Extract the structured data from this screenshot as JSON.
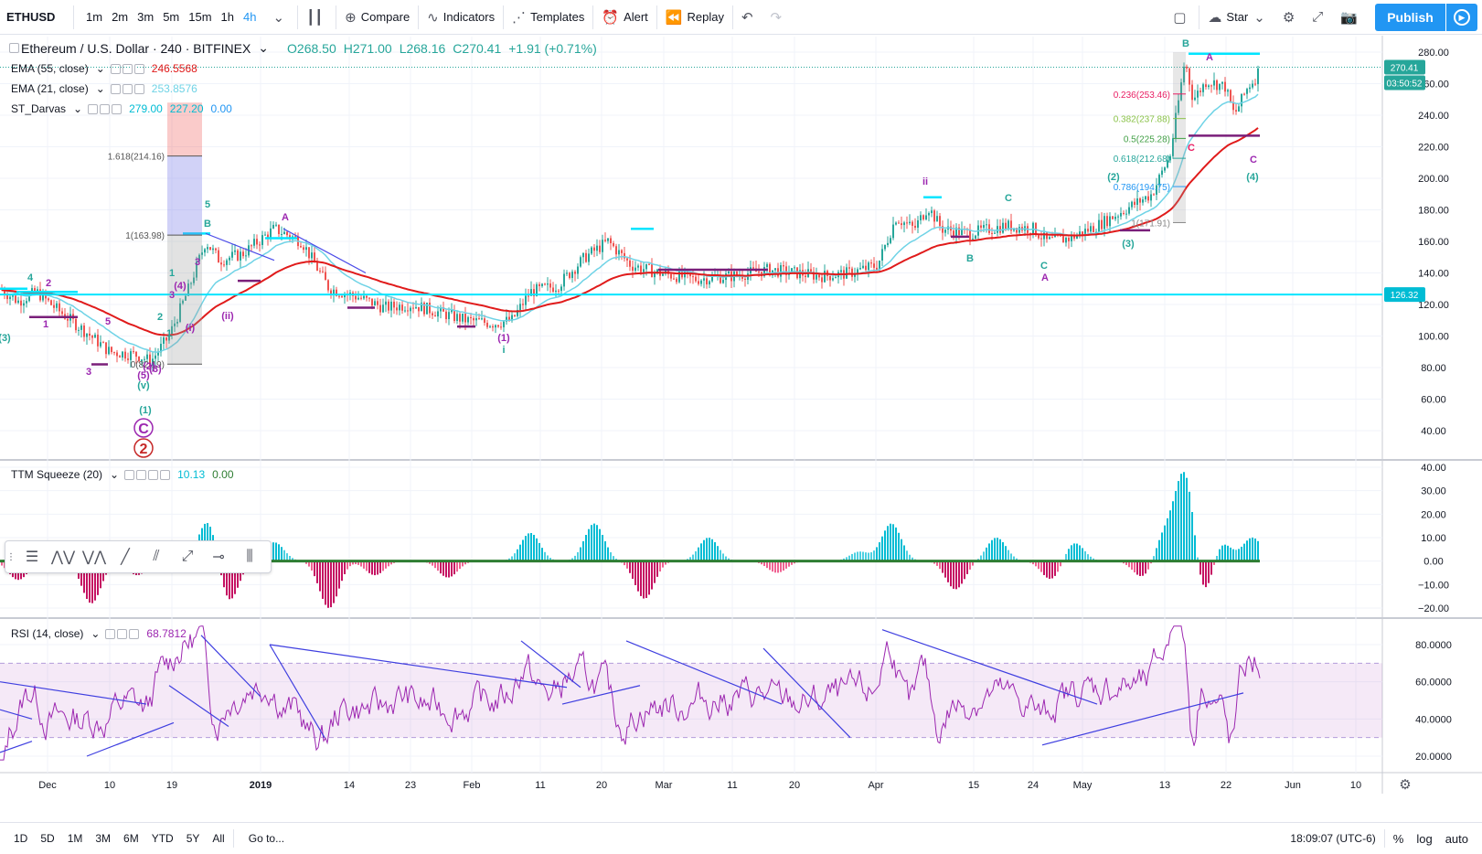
{
  "toolbar": {
    "symbol": "ETHUSD",
    "timeframes": [
      "1m",
      "2m",
      "3m",
      "5m",
      "15m",
      "1h",
      "4h"
    ],
    "active_tf": "4h",
    "compare": "Compare",
    "indicators": "Indicators",
    "templates": "Templates",
    "alert": "Alert",
    "replay": "Replay",
    "star": "Star",
    "publish": "Publish"
  },
  "legend": {
    "main": {
      "title": "Ethereum / U.S. Dollar · 240 · BITFINEX",
      "open": "O268.50",
      "high": "H271.00",
      "low": "L268.16",
      "close": "C270.41",
      "change": "+1.91 (+0.71%)"
    },
    "ema55": {
      "name": "EMA (55, close)",
      "value": "246.5568"
    },
    "ema21": {
      "name": "EMA (21, close)",
      "value": "253.8576"
    },
    "darvas": {
      "name": "ST_Darvas",
      "v1": "279.00",
      "v2": "227.20",
      "v3": "0.00"
    },
    "ttm": {
      "name": "TTM Squeeze (20)",
      "v1": "10.13",
      "v2": "0.00"
    },
    "rsi": {
      "name": "RSI (14, close)",
      "value": "68.7812"
    }
  },
  "axes": {
    "price_ticks": [
      "280.00",
      "260.00",
      "240.00",
      "220.00",
      "200.00",
      "180.00",
      "160.00",
      "140.00",
      "120.00",
      "100.00",
      "80.00",
      "60.00",
      "40.00"
    ],
    "price_last": "270.41",
    "price_countdown": "03:50:52",
    "price_hline": "126.32",
    "ttm_ticks": [
      "40.00",
      "30.00",
      "20.00",
      "10.00",
      "0.00",
      "−10.00",
      "−20.00"
    ],
    "rsi_ticks": [
      "80.0000",
      "60.0000",
      "40.0000",
      "20.0000"
    ],
    "time_ticks": [
      "Dec",
      "10",
      "19",
      "2019",
      "14",
      "23",
      "Feb",
      "11",
      "20",
      "Mar",
      "11",
      "20",
      "Apr",
      "15",
      "24",
      "May",
      "13",
      "22",
      "Jun",
      "10"
    ]
  },
  "annotations": {
    "fib": [
      "1.618(214.16)",
      "1(163.98)",
      "0(82.19)"
    ],
    "fib_right": [
      "0.236(253.46)",
      "0.382(237.88)",
      "0.5(225.28)",
      "0.618(212.68)",
      "0.786(194.75)",
      "1(171.91)"
    ],
    "waves": [
      "(3)",
      "2",
      "1",
      "4",
      "3",
      "5",
      "(5)",
      "(v)",
      "(1)",
      "(2)",
      "(3)",
      "(4)",
      "(i)",
      "5",
      "B",
      "A",
      "(ii)",
      "i",
      "ii",
      "A",
      "B",
      "C",
      "C",
      "(1)",
      "(2)",
      "(3)",
      "B",
      "A",
      "C",
      "(4)",
      "C",
      "2",
      "1",
      "3",
      "1",
      "3"
    ]
  },
  "bottom": {
    "ranges": [
      "1D",
      "5D",
      "1M",
      "3M",
      "6M",
      "YTD",
      "5Y",
      "All"
    ],
    "goto": "Go to...",
    "time": "18:09:07 (UTC-6)",
    "pct": "%",
    "log": "log",
    "auto": "auto"
  },
  "colors": {
    "up": "#26a69a",
    "down": "#ef5350",
    "ema55": "#e01b1b",
    "ema21": "#6fd3e6",
    "darvas_top": "#00e5ff",
    "darvas_bot": "#7a1f7a",
    "rsi": "#9c27b0",
    "hline": "#00e5ff"
  }
}
